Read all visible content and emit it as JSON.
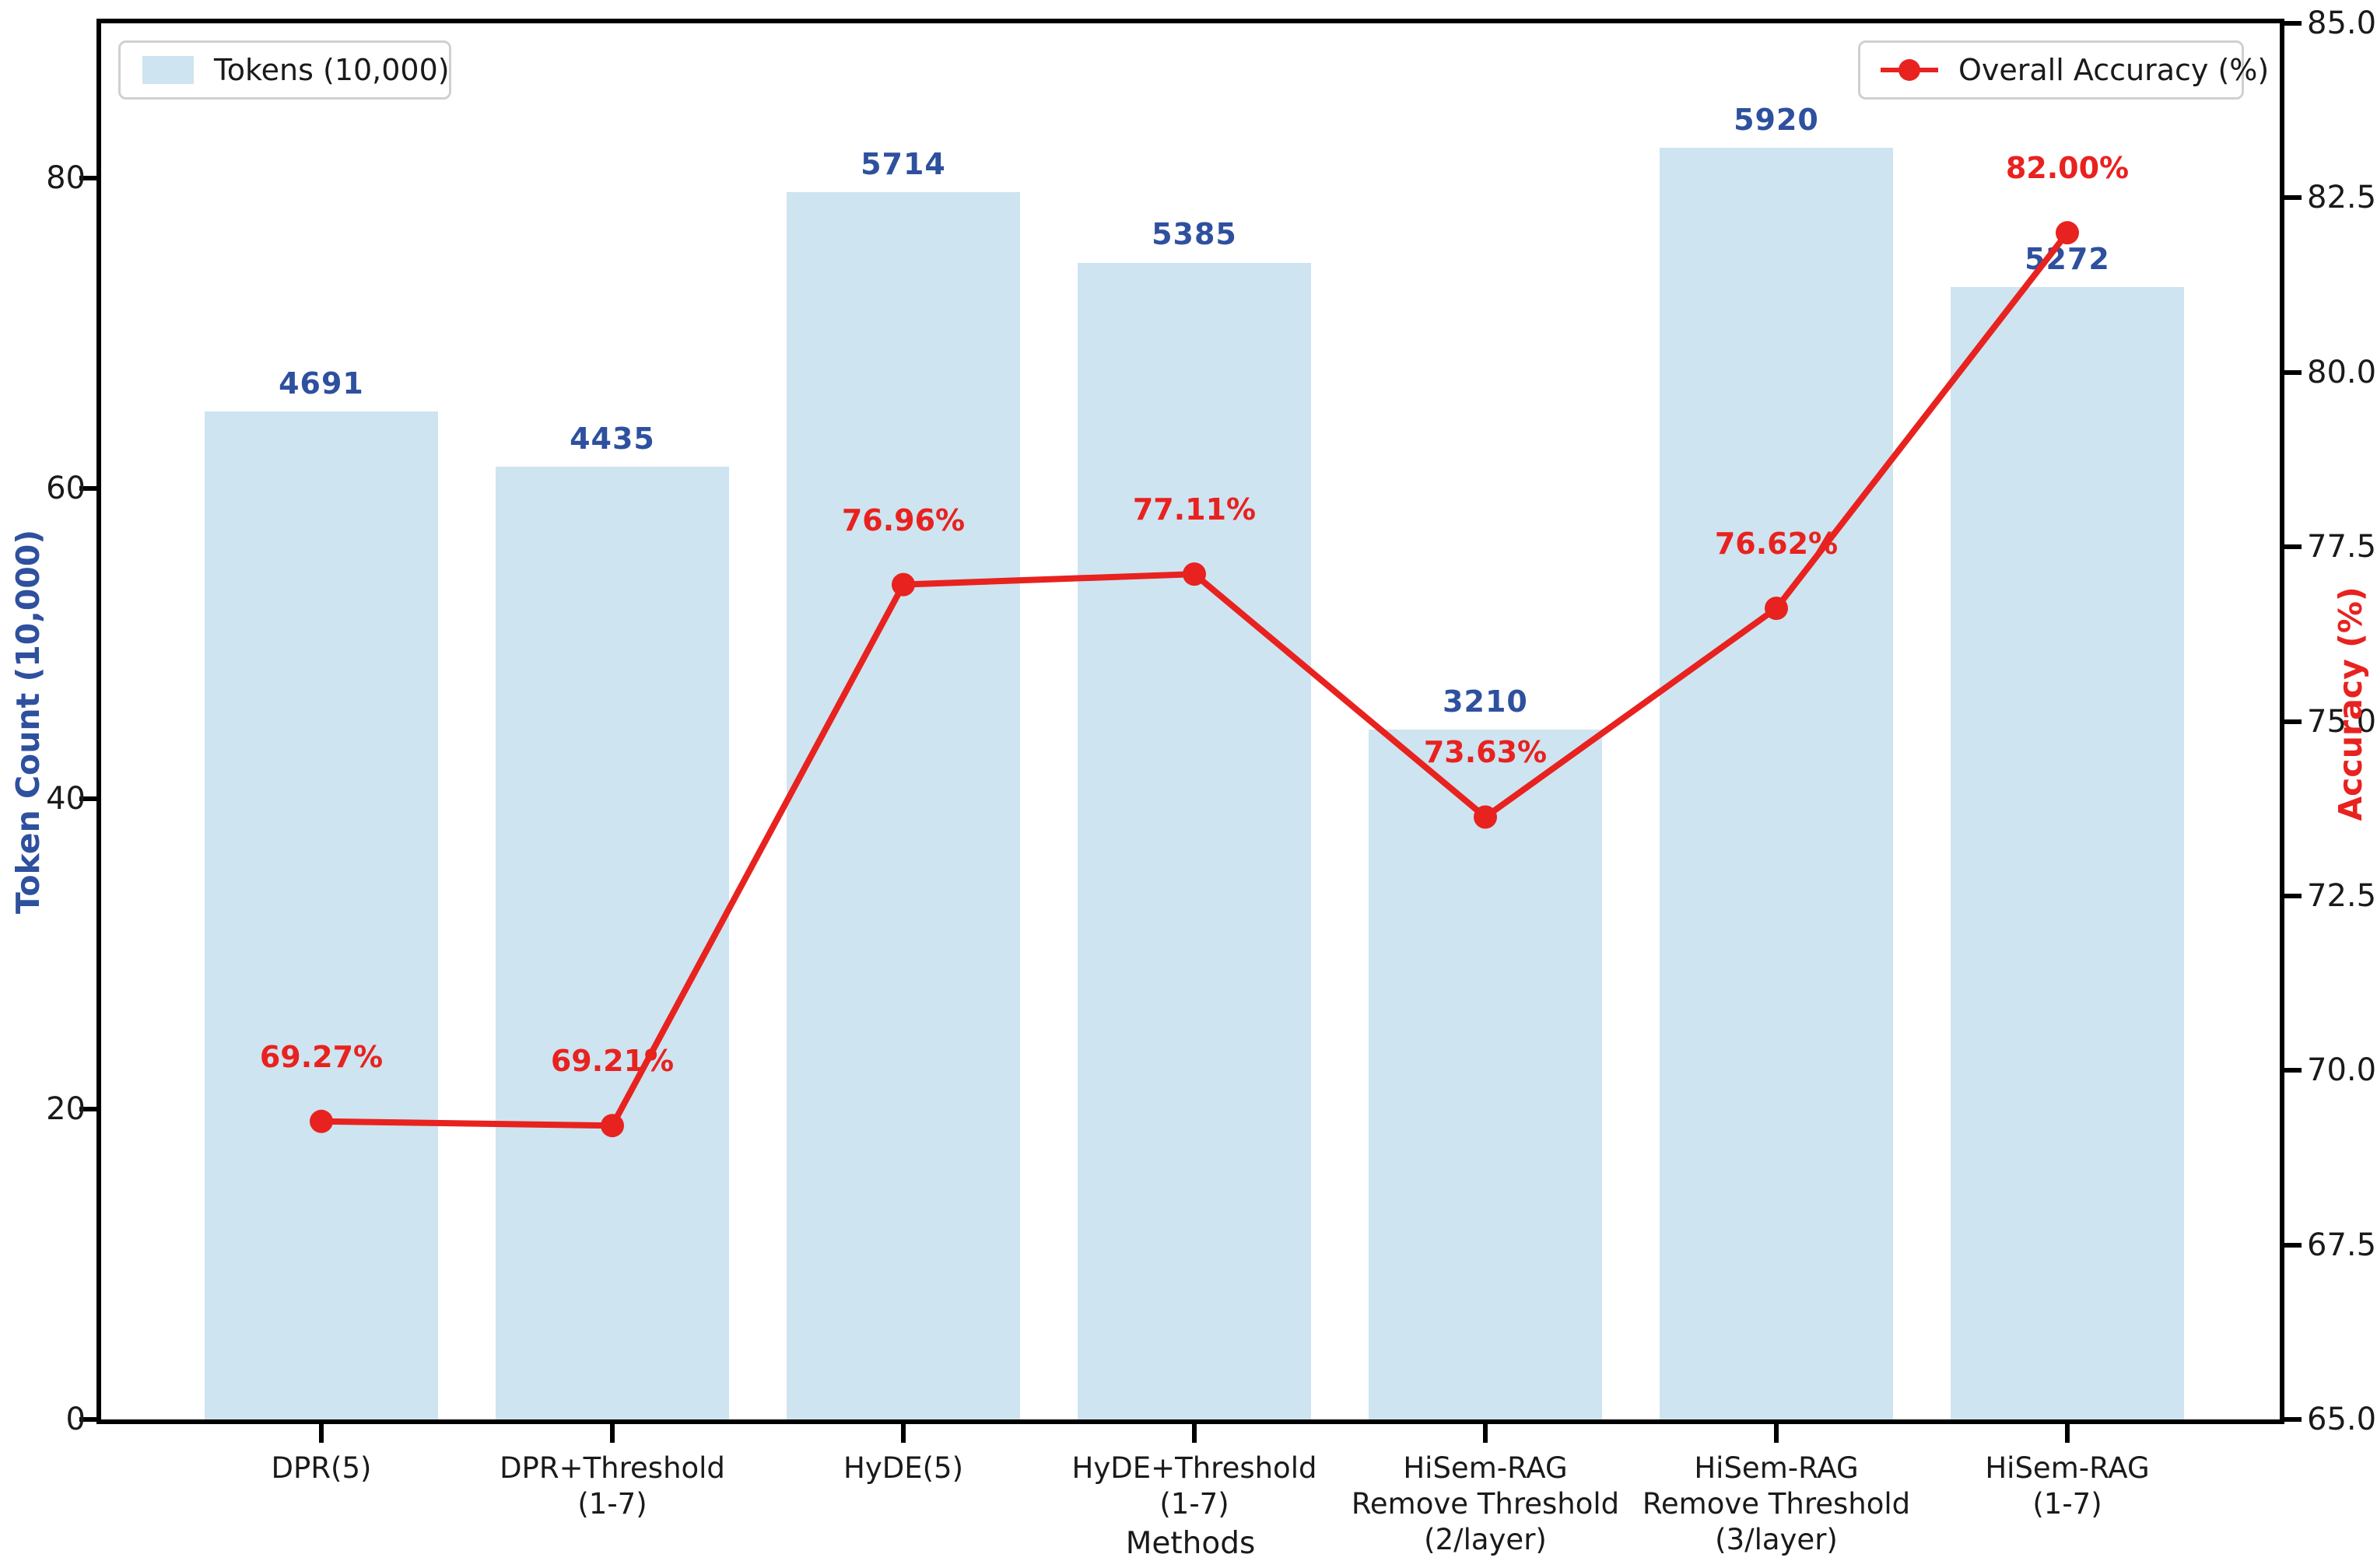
{
  "chart_data": {
    "type": "bar",
    "title": "",
    "xlabel": "Methods",
    "ylabel_left": "Token Count (10,000)",
    "ylabel_right": "Accuracy (%)",
    "categories": [
      [
        "DPR(5)"
      ],
      [
        "DPR+Threshold",
        "(1-7)"
      ],
      [
        "HyDE(5)"
      ],
      [
        "HyDE+Threshold",
        "(1-7)"
      ],
      [
        "HiSem-RAG",
        "Remove Threshold",
        "(2/layer)"
      ],
      [
        "HiSem-RAG",
        "Remove Threshold",
        "(3/layer)"
      ],
      [
        "HiSem-RAG",
        "(1-7)"
      ]
    ],
    "series": [
      {
        "name": "Tokens (10,000)",
        "type": "bar",
        "axis": "left",
        "values": [
          4691,
          4435,
          5714,
          5385,
          3210,
          5920,
          5272
        ],
        "value_labels": [
          "4691",
          "4435",
          "5714",
          "5385",
          "3210",
          "5920",
          "5272"
        ],
        "color": "#cee4f0",
        "label_color": "#2e509e"
      },
      {
        "name": "Overall Accuracy (%)",
        "type": "line",
        "axis": "right",
        "values": [
          69.27,
          69.21,
          76.96,
          77.11,
          73.63,
          76.62,
          82.0
        ],
        "value_labels": [
          "69.27%",
          "69.21%",
          "76.96%",
          "77.11%",
          "73.63%",
          "76.62%",
          "82.00%"
        ],
        "color": "#e8221f"
      }
    ],
    "left_axis": {
      "ticks": [
        "0",
        "20",
        "40",
        "60",
        "80"
      ],
      "tick_values": [
        0,
        20,
        40,
        60,
        80
      ],
      "min": 0,
      "max": 90,
      "tokens_per_axis_unit": 72.2
    },
    "right_axis": {
      "ticks": [
        "65.0",
        "67.5",
        "70.0",
        "72.5",
        "75.0",
        "77.5",
        "80.0",
        "82.5",
        "85.0"
      ],
      "tick_values": [
        65,
        67.5,
        70,
        72.5,
        75,
        77.5,
        80,
        82.5,
        85
      ],
      "min": 65,
      "max": 85
    },
    "legend": [
      {
        "label": "Tokens (10,000)",
        "marker": "bar-swatch"
      },
      {
        "label": "Overall Accuracy (%)",
        "marker": "line-dot"
      }
    ],
    "grid": false,
    "legend_position": "top-left and top-right"
  }
}
